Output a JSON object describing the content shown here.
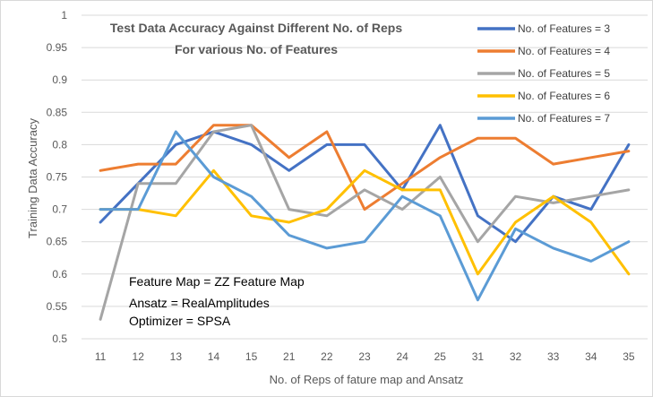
{
  "chart_data": {
    "type": "line",
    "title": "Test Data Accuracy Against Different No. of Reps",
    "subtitle": "For various No. of Features",
    "xlabel": "No. of Reps of fature map and Ansatz",
    "ylabel": "Training Data Accuracy",
    "categories": [
      "11",
      "12",
      "13",
      "14",
      "15",
      "21",
      "22",
      "23",
      "24",
      "25",
      "31",
      "32",
      "33",
      "34",
      "35"
    ],
    "ylim": [
      0.5,
      1
    ],
    "yticks": [
      "0.5",
      "0.55",
      "0.6",
      "0.65",
      "0.7",
      "0.75",
      "0.8",
      "0.85",
      "0.9",
      "0.95",
      "1"
    ],
    "grid": true,
    "legend_position": "top-right",
    "series": [
      {
        "name": "No. of Features = 3",
        "color": "#4472C4",
        "values": [
          0.68,
          0.74,
          0.8,
          0.82,
          0.8,
          0.76,
          0.8,
          0.8,
          0.73,
          0.83,
          0.69,
          0.65,
          0.72,
          0.7,
          0.8
        ]
      },
      {
        "name": "No. of Features = 4",
        "color": "#ED7D31",
        "values": [
          0.76,
          0.77,
          0.77,
          0.83,
          0.83,
          0.78,
          0.82,
          0.7,
          0.74,
          0.78,
          0.81,
          0.81,
          0.77,
          0.78,
          0.79
        ]
      },
      {
        "name": "No. of Features = 5",
        "color": "#A5A5A5",
        "values": [
          0.53,
          0.74,
          0.74,
          0.82,
          0.83,
          0.7,
          0.69,
          0.73,
          0.7,
          0.75,
          0.65,
          0.72,
          0.71,
          0.72,
          0.73
        ]
      },
      {
        "name": "No. of Features = 6",
        "color": "#FFC000",
        "values": [
          0.7,
          0.7,
          0.69,
          0.76,
          0.69,
          0.68,
          0.7,
          0.76,
          0.73,
          0.73,
          0.6,
          0.68,
          0.72,
          0.68,
          0.6
        ]
      },
      {
        "name": "No. of Features = 7",
        "color": "#5B9BD5",
        "values": [
          0.7,
          0.7,
          0.82,
          0.75,
          0.72,
          0.66,
          0.64,
          0.65,
          0.72,
          0.69,
          0.56,
          0.67,
          0.64,
          0.62,
          0.65
        ]
      }
    ],
    "annotations": [
      "Feature Map = ZZ Feature Map",
      "Ansatz = RealAmplitudes",
      "Optimizer = SPSA"
    ]
  }
}
